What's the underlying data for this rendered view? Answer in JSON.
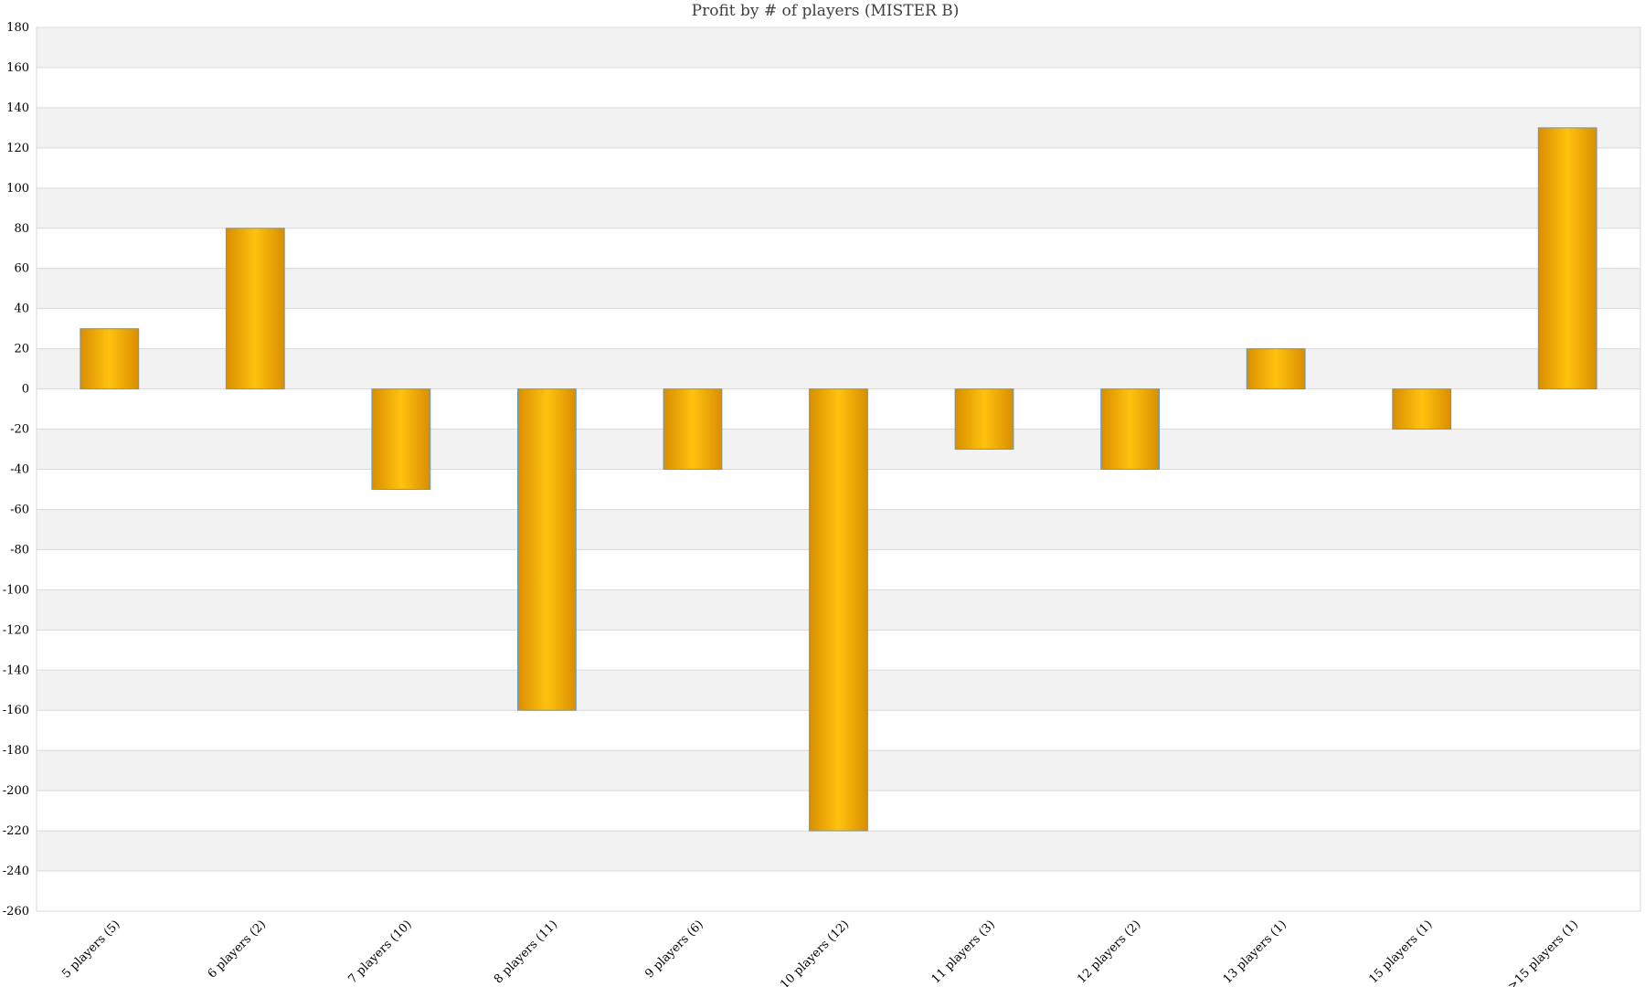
{
  "chart_data": {
    "type": "bar",
    "title": "Profit by # of players  (MISTER B)",
    "xlabel": "",
    "ylabel": "",
    "categories": [
      "5 players (5)",
      "6 players (2)",
      "7 players (10)",
      "8 players (11)",
      "9 players (6)",
      "10 players (12)",
      "11 players (3)",
      "12 players (2)",
      "13 players (1)",
      "15 players (1)",
      ">15 players (1)"
    ],
    "values": [
      30,
      80,
      -50,
      -160,
      -40,
      -220,
      -30,
      -40,
      20,
      -20,
      130
    ],
    "ylim": [
      -260,
      180
    ],
    "yticks": [
      "180",
      "160",
      "140",
      "120",
      "100",
      "80",
      "60",
      "40",
      "20",
      "0",
      "-20",
      "-40",
      "-60",
      "-80",
      "-100",
      "-120",
      "-140",
      "-160",
      "-180",
      "-200",
      "-220",
      "-240",
      "-260"
    ],
    "grid": true,
    "legend": "none",
    "colors": {
      "bar_edge": "#F7B500",
      "bar_center": "#FFC20E",
      "bar_dark": "#D98E00",
      "bar_border": "#5B9BD5",
      "band": "#F2F2F2",
      "gridline": "#D9D9D9"
    }
  }
}
